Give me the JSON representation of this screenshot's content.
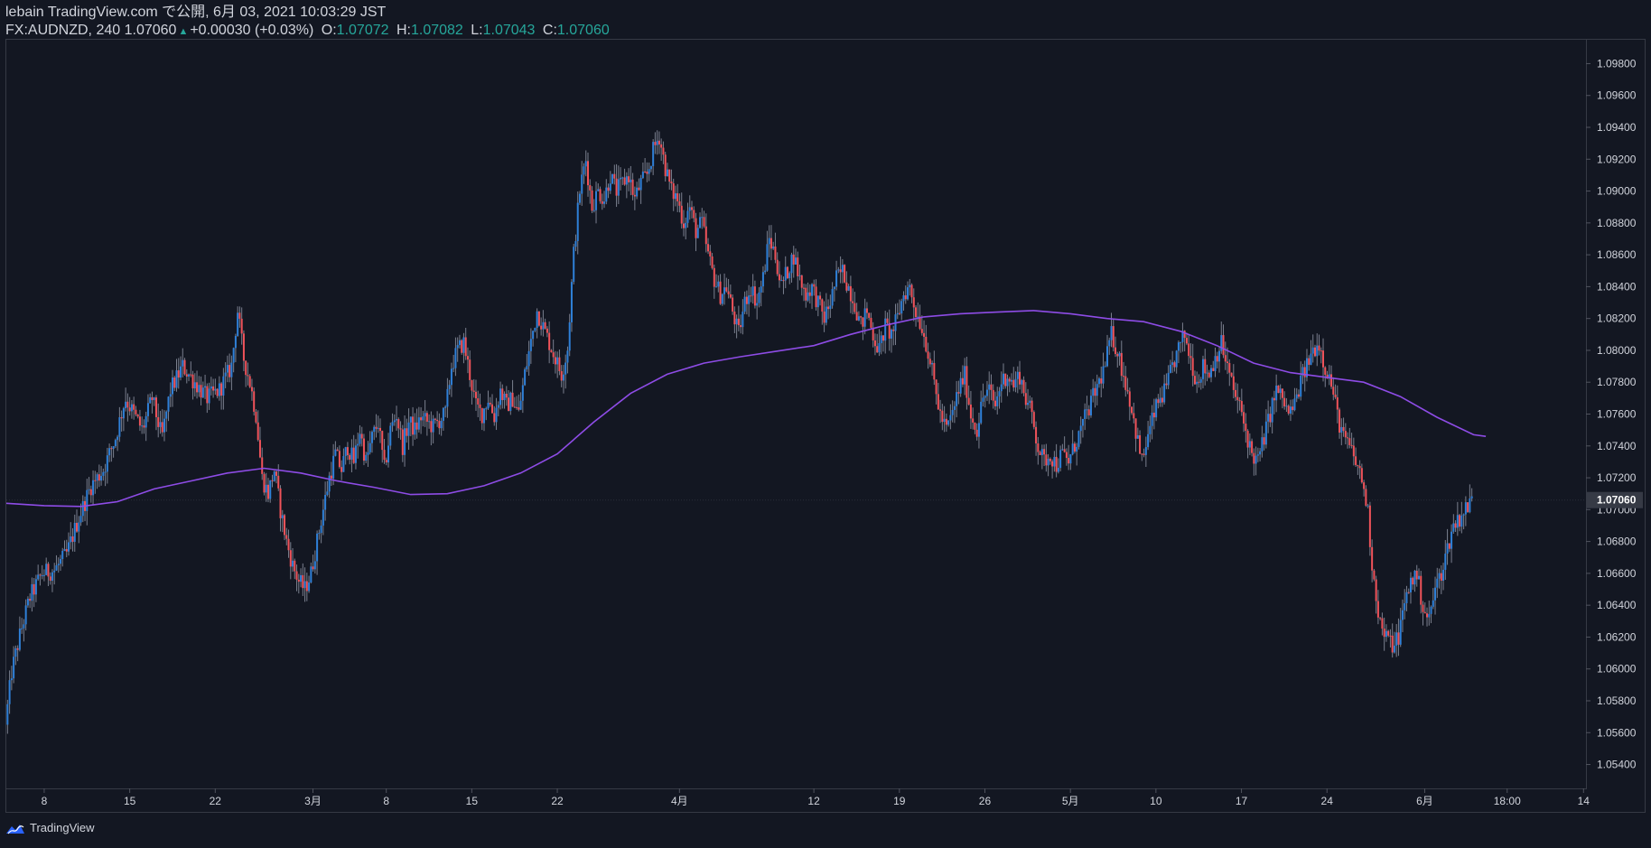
{
  "header": {
    "line1": "lebain TradingView.com で公開, 6月 03, 2021 10:03:29 JST",
    "symbol_interval": "FX:AUDNZD, 240",
    "last": "1.07060",
    "change": "+0.00030 (+0.03%)",
    "o_label": "O:",
    "o_value": "1.07072",
    "h_label": "H:",
    "h_value": "1.07082",
    "l_label": "L:",
    "l_value": "1.07043",
    "c_label": "C:",
    "c_value": "1.07060"
  },
  "footer": {
    "brand": "TradingView"
  },
  "colors": {
    "background": "#131722",
    "up": "#2f80d8",
    "down": "#f0535a",
    "ma": "#8e4ce6",
    "axis_text": "#d1d4dc",
    "border": "#363a45",
    "last_price_bg": "#363a45"
  },
  "chart_data": {
    "type": "candlestick",
    "symbol": "FX:AUDNZD",
    "interval": "240",
    "ylim": [
      1.0525,
      1.0995
    ],
    "y_ticks": [
      "1.05400",
      "1.05600",
      "1.05800",
      "1.06000",
      "1.06200",
      "1.06400",
      "1.06600",
      "1.06800",
      "1.07000",
      "1.07200",
      "1.07400",
      "1.07600",
      "1.07800",
      "1.08000",
      "1.08200",
      "1.08400",
      "1.08600",
      "1.08800",
      "1.09000",
      "1.09200",
      "1.09400",
      "1.09600",
      "1.09800"
    ],
    "x_ticks": [
      {
        "label": "8",
        "day": 6
      },
      {
        "label": "15",
        "day": 13
      },
      {
        "label": "22",
        "day": 20
      },
      {
        "label": "3月",
        "day": 28
      },
      {
        "label": "8",
        "day": 34
      },
      {
        "label": "15",
        "day": 41
      },
      {
        "label": "22",
        "day": 48
      },
      {
        "label": "4月",
        "day": 58
      },
      {
        "label": "12",
        "day": 69
      },
      {
        "label": "19",
        "day": 76
      },
      {
        "label": "26",
        "day": 83
      },
      {
        "label": "5月",
        "day": 90
      },
      {
        "label": "10",
        "day": 97
      },
      {
        "label": "17",
        "day": 104
      },
      {
        "label": "24",
        "day": 111
      },
      {
        "label": "6月",
        "day": 119
      },
      {
        "label": "18:00",
        "day": 125.75
      },
      {
        "label": "14",
        "day": 132
      }
    ],
    "x_range_days": [
      2.9,
      132.2
    ],
    "last_price": "1.07060",
    "price_path": [
      [
        3.0,
        1.0565
      ],
      [
        3.5,
        1.0598
      ],
      [
        4.2,
        1.0622
      ],
      [
        5.0,
        1.0645
      ],
      [
        6.0,
        1.066
      ],
      [
        7.0,
        1.0662
      ],
      [
        8.0,
        1.0672
      ],
      [
        9.0,
        1.0695
      ],
      [
        10.0,
        1.0715
      ],
      [
        11.0,
        1.0725
      ],
      [
        12.0,
        1.0745
      ],
      [
        12.8,
        1.077
      ],
      [
        13.5,
        1.076
      ],
      [
        14.2,
        1.075
      ],
      [
        15.0,
        1.077
      ],
      [
        15.8,
        1.0745
      ],
      [
        16.5,
        1.0775
      ],
      [
        17.5,
        1.079
      ],
      [
        18.5,
        1.078
      ],
      [
        19.5,
        1.077
      ],
      [
        20.5,
        1.0775
      ],
      [
        21.5,
        1.079
      ],
      [
        22.0,
        1.0825
      ],
      [
        22.5,
        1.0795
      ],
      [
        23.0,
        1.078
      ],
      [
        23.5,
        1.076
      ],
      [
        24.0,
        1.072
      ],
      [
        24.5,
        1.071
      ],
      [
        25.0,
        1.0725
      ],
      [
        25.5,
        1.07
      ],
      [
        26.0,
        1.068
      ],
      [
        26.5,
        1.0665
      ],
      [
        27.0,
        1.0655
      ],
      [
        27.5,
        1.065
      ],
      [
        28.0,
        1.066
      ],
      [
        28.5,
        1.068
      ],
      [
        29.0,
        1.07
      ],
      [
        29.5,
        1.072
      ],
      [
        30.0,
        1.0735
      ],
      [
        30.5,
        1.0725
      ],
      [
        31.0,
        1.074
      ],
      [
        31.5,
        1.073
      ],
      [
        32.0,
        1.075
      ],
      [
        32.5,
        1.073
      ],
      [
        33.0,
        1.0745
      ],
      [
        33.5,
        1.0755
      ],
      [
        34.0,
        1.0725
      ],
      [
        34.5,
        1.075
      ],
      [
        35.0,
        1.076
      ],
      [
        35.5,
        1.074
      ],
      [
        36.0,
        1.0755
      ],
      [
        36.5,
        1.075
      ],
      [
        37.0,
        1.0758
      ],
      [
        38.0,
        1.0752
      ],
      [
        39.0,
        1.076
      ],
      [
        39.5,
        1.079
      ],
      [
        40.0,
        1.08
      ],
      [
        40.5,
        1.0805
      ],
      [
        41.0,
        1.0785
      ],
      [
        41.5,
        1.0765
      ],
      [
        42.0,
        1.076
      ],
      [
        42.5,
        1.077
      ],
      [
        43.0,
        1.0758
      ],
      [
        43.5,
        1.0775
      ],
      [
        44.0,
        1.0765
      ],
      [
        44.5,
        1.077
      ],
      [
        45.0,
        1.076
      ],
      [
        45.5,
        1.0785
      ],
      [
        46.0,
        1.0805
      ],
      [
        46.5,
        1.0825
      ],
      [
        47.0,
        1.0815
      ],
      [
        47.5,
        1.0805
      ],
      [
        48.0,
        1.0795
      ],
      [
        48.5,
        1.0785
      ],
      [
        49.0,
        1.08
      ],
      [
        49.5,
        1.086
      ],
      [
        50.0,
        1.09
      ],
      [
        50.5,
        1.092
      ],
      [
        51.0,
        1.089
      ],
      [
        51.5,
        1.09
      ],
      [
        52.0,
        1.0895
      ],
      [
        52.5,
        1.091
      ],
      [
        53.0,
        1.09
      ],
      [
        53.5,
        1.0905
      ],
      [
        54.0,
        1.091
      ],
      [
        54.5,
        1.0895
      ],
      [
        55.0,
        1.0905
      ],
      [
        55.5,
        1.091
      ],
      [
        56.0,
        1.0925
      ],
      [
        56.5,
        1.0935
      ],
      [
        57.0,
        1.0915
      ],
      [
        57.5,
        1.09
      ],
      [
        58.0,
        1.0895
      ],
      [
        58.5,
        1.088
      ],
      [
        59.0,
        1.089
      ],
      [
        59.5,
        1.0875
      ],
      [
        60.0,
        1.088
      ],
      [
        60.5,
        1.086
      ],
      [
        61.0,
        1.0845
      ],
      [
        61.5,
        1.0835
      ],
      [
        62.0,
        1.084
      ],
      [
        62.5,
        1.0825
      ],
      [
        63.0,
        1.081
      ],
      [
        63.5,
        1.083
      ],
      [
        64.0,
        1.084
      ],
      [
        64.5,
        1.083
      ],
      [
        65.0,
        1.0845
      ],
      [
        65.5,
        1.087
      ],
      [
        66.0,
        1.086
      ],
      [
        66.5,
        1.084
      ],
      [
        67.0,
        1.085
      ],
      [
        67.5,
        1.086
      ],
      [
        68.0,
        1.0845
      ],
      [
        68.5,
        1.0835
      ],
      [
        69.0,
        1.084
      ],
      [
        69.5,
        1.083
      ],
      [
        70.0,
        1.082
      ],
      [
        70.5,
        1.083
      ],
      [
        71.0,
        1.0845
      ],
      [
        71.5,
        1.085
      ],
      [
        72.0,
        1.084
      ],
      [
        72.5,
        1.083
      ],
      [
        73.0,
        1.0815
      ],
      [
        73.5,
        1.0825
      ],
      [
        74.0,
        1.081
      ],
      [
        74.5,
        1.08
      ],
      [
        75.0,
        1.0815
      ],
      [
        75.5,
        1.081
      ],
      [
        76.0,
        1.082
      ],
      [
        76.5,
        1.0835
      ],
      [
        77.0,
        1.084
      ],
      [
        77.5,
        1.0825
      ],
      [
        78.0,
        1.0815
      ],
      [
        78.5,
        1.08
      ],
      [
        79.0,
        1.078
      ],
      [
        79.5,
        1.076
      ],
      [
        80.0,
        1.075
      ],
      [
        80.5,
        1.076
      ],
      [
        81.0,
        1.0775
      ],
      [
        81.5,
        1.0785
      ],
      [
        82.0,
        1.076
      ],
      [
        82.5,
        1.075
      ],
      [
        83.0,
        1.077
      ],
      [
        83.5,
        1.0775
      ],
      [
        84.0,
        1.0765
      ],
      [
        84.5,
        1.078
      ],
      [
        85.0,
        1.0785
      ],
      [
        85.5,
        1.0778
      ],
      [
        86.0,
        1.0785
      ],
      [
        86.5,
        1.077
      ],
      [
        87.0,
        1.076
      ],
      [
        87.5,
        1.074
      ],
      [
        88.0,
        1.073
      ],
      [
        88.5,
        1.0735
      ],
      [
        89.0,
        1.0728
      ],
      [
        89.5,
        1.0735
      ],
      [
        90.0,
        1.073
      ],
      [
        90.5,
        1.074
      ],
      [
        91.0,
        1.075
      ],
      [
        91.5,
        1.076
      ],
      [
        92.0,
        1.077
      ],
      [
        92.5,
        1.078
      ],
      [
        93.0,
        1.079
      ],
      [
        93.5,
        1.081
      ],
      [
        94.0,
        1.08
      ],
      [
        94.5,
        1.0785
      ],
      [
        95.0,
        1.077
      ],
      [
        95.5,
        1.075
      ],
      [
        96.0,
        1.073
      ],
      [
        96.5,
        1.0745
      ],
      [
        97.0,
        1.076
      ],
      [
        97.5,
        1.077
      ],
      [
        98.0,
        1.0775
      ],
      [
        98.5,
        1.079
      ],
      [
        99.0,
        1.08
      ],
      [
        99.5,
        1.081
      ],
      [
        100.0,
        1.0795
      ],
      [
        100.5,
        1.078
      ],
      [
        101.0,
        1.079
      ],
      [
        101.5,
        1.0785
      ],
      [
        102.0,
        1.0795
      ],
      [
        102.5,
        1.0805
      ],
      [
        103.0,
        1.079
      ],
      [
        103.5,
        1.0775
      ],
      [
        104.0,
        1.0765
      ],
      [
        104.5,
        1.075
      ],
      [
        105.0,
        1.0735
      ],
      [
        105.5,
        1.073
      ],
      [
        106.0,
        1.0745
      ],
      [
        106.5,
        1.076
      ],
      [
        107.0,
        1.0775
      ],
      [
        107.5,
        1.077
      ],
      [
        108.0,
        1.076
      ],
      [
        108.5,
        1.0765
      ],
      [
        109.0,
        1.078
      ],
      [
        109.5,
        1.079
      ],
      [
        110.0,
        1.08
      ],
      [
        110.5,
        1.0805
      ],
      [
        111.0,
        1.079
      ],
      [
        111.5,
        1.078
      ],
      [
        112.0,
        1.076
      ],
      [
        112.5,
        1.0745
      ],
      [
        113.0,
        1.074
      ],
      [
        113.5,
        1.073
      ],
      [
        114.0,
        1.072
      ],
      [
        114.5,
        1.07
      ],
      [
        114.8,
        1.067
      ],
      [
        115.2,
        1.0645
      ],
      [
        115.6,
        1.0625
      ],
      [
        116.0,
        1.062
      ],
      [
        116.5,
        1.0615
      ],
      [
        117.0,
        1.062
      ],
      [
        117.5,
        1.064
      ],
      [
        118.0,
        1.0655
      ],
      [
        118.5,
        1.066
      ],
      [
        119.0,
        1.064
      ],
      [
        119.5,
        1.063
      ],
      [
        120.0,
        1.065
      ],
      [
        120.5,
        1.066
      ],
      [
        121.0,
        1.0675
      ],
      [
        121.5,
        1.069
      ],
      [
        122.0,
        1.0695
      ],
      [
        122.5,
        1.07
      ],
      [
        123.0,
        1.0706
      ]
    ],
    "ma_path": [
      [
        2.9,
        1.0704
      ],
      [
        6,
        1.07025
      ],
      [
        9,
        1.0702
      ],
      [
        12,
        1.0705
      ],
      [
        15,
        1.0713
      ],
      [
        18,
        1.0718
      ],
      [
        21,
        1.0723
      ],
      [
        24,
        1.0726
      ],
      [
        27,
        1.0723
      ],
      [
        30,
        1.0718
      ],
      [
        33,
        1.0714
      ],
      [
        36,
        1.07095
      ],
      [
        39,
        1.071
      ],
      [
        42,
        1.0715
      ],
      [
        45,
        1.0723
      ],
      [
        48,
        1.0735
      ],
      [
        51,
        1.0755
      ],
      [
        54,
        1.0773
      ],
      [
        57,
        1.0785
      ],
      [
        60,
        1.0792
      ],
      [
        63,
        1.0796
      ],
      [
        66,
        1.07995
      ],
      [
        69,
        1.0803
      ],
      [
        72,
        1.081
      ],
      [
        75,
        1.0816
      ],
      [
        78,
        1.0821
      ],
      [
        81,
        1.0823
      ],
      [
        84,
        1.0824
      ],
      [
        87,
        1.0825
      ],
      [
        90,
        1.0823
      ],
      [
        93,
        1.082
      ],
      [
        96,
        1.0818
      ],
      [
        99,
        1.0812
      ],
      [
        102,
        1.0803
      ],
      [
        105,
        1.0792
      ],
      [
        108,
        1.0786
      ],
      [
        111,
        1.0783
      ],
      [
        114,
        1.078
      ],
      [
        117,
        1.0771
      ],
      [
        120,
        1.0758
      ],
      [
        123,
        1.0747
      ],
      [
        124,
        1.0746
      ]
    ]
  }
}
